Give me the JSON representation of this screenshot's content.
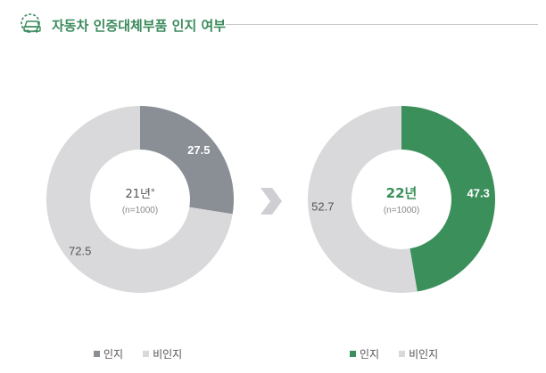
{
  "header": {
    "title": "자동차 인증대체부품 인지 여부",
    "icon": "car-gear-icon"
  },
  "colors": {
    "aware_21": "#8a8f96",
    "aware_22": "#3b8f5a",
    "unaware": "#d9d9dc",
    "accent": "#3a8a5c",
    "arrow": "#cfcfd3"
  },
  "chart_data": [
    {
      "type": "pie",
      "variant": "donut",
      "year_label": "21년",
      "year_mark": "*",
      "sample": "(n=1000)",
      "categories": [
        "인지",
        "비인지"
      ],
      "values": [
        27.5,
        72.5
      ],
      "legend": [
        "인지",
        "비인지"
      ],
      "legend_position": "bottom"
    },
    {
      "type": "pie",
      "variant": "donut",
      "year_label": "22년",
      "year_mark": "",
      "sample": "(n=1000)",
      "categories": [
        "인지",
        "비인지"
      ],
      "values": [
        47.3,
        52.7
      ],
      "legend": [
        "인지",
        "비인지"
      ],
      "legend_position": "bottom"
    }
  ]
}
